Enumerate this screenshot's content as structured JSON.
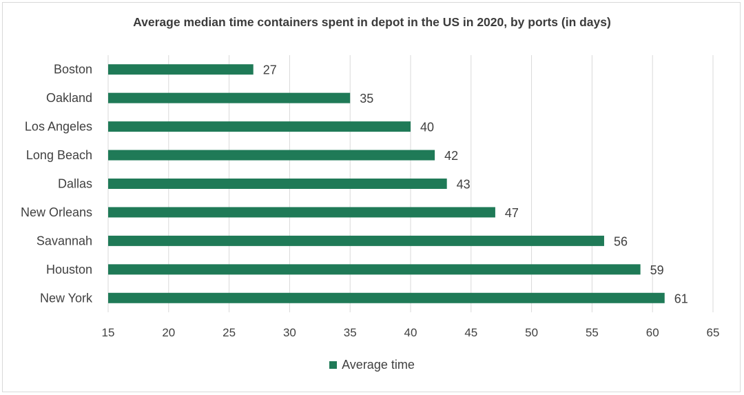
{
  "chart_data": {
    "type": "bar",
    "orientation": "horizontal",
    "title": "Average median time containers spent in depot in the US in 2020, by ports (in days)",
    "categories": [
      "Boston",
      "Oakland",
      "Los Angeles",
      "Long Beach",
      "Dallas",
      "New Orleans",
      "Savannah",
      "Houston",
      "New York"
    ],
    "series": [
      {
        "name": "Average time",
        "values": [
          27,
          35,
          40,
          42,
          43,
          47,
          56,
          59,
          61
        ],
        "color": "#1f7a57"
      }
    ],
    "xlim": [
      15,
      65
    ],
    "xticks": [
      15,
      20,
      25,
      30,
      35,
      40,
      45,
      50,
      55,
      60,
      65
    ],
    "grid": "vertical",
    "legend": "bottom",
    "data_labels": true
  }
}
